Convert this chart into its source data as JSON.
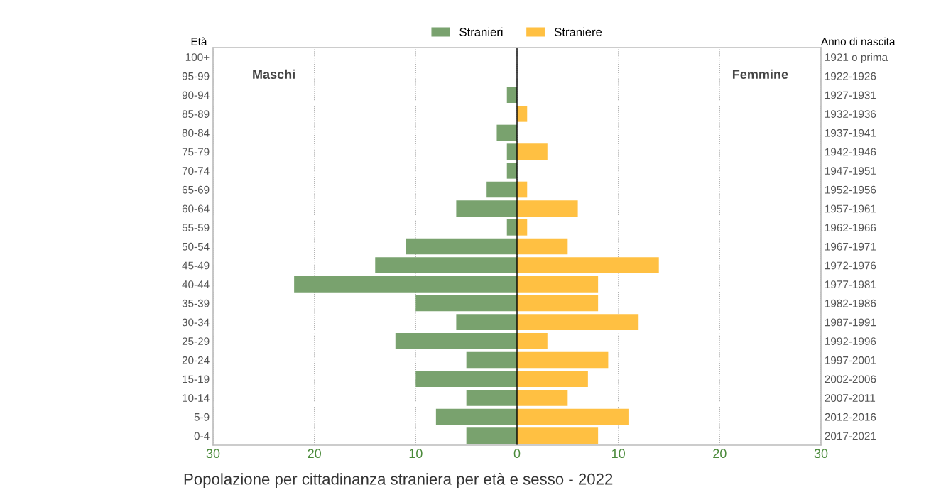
{
  "chart_data": {
    "type": "bar",
    "orientation": "horizontal",
    "title": "Popolazione per cittadinanza straniera per età e sesso - 2022",
    "ylabel": "Età",
    "y2label": "Anno di nascita",
    "categories": [
      "100+",
      "95-99",
      "90-94",
      "85-89",
      "80-84",
      "75-79",
      "70-74",
      "65-69",
      "60-64",
      "55-59",
      "50-54",
      "45-49",
      "40-44",
      "35-39",
      "30-34",
      "25-29",
      "20-24",
      "15-19",
      "10-14",
      "5-9",
      "0-4"
    ],
    "y2_categories": [
      "1921 o prima",
      "1922-1926",
      "1927-1931",
      "1932-1936",
      "1937-1941",
      "1942-1946",
      "1947-1951",
      "1952-1956",
      "1957-1961",
      "1962-1966",
      "1967-1971",
      "1972-1976",
      "1977-1981",
      "1982-1986",
      "1987-1991",
      "1992-1996",
      "1997-2001",
      "2002-2006",
      "2007-2011",
      "2012-2016",
      "2017-2021"
    ],
    "series": [
      {
        "name": "Stranieri",
        "color": "#79a26e",
        "values": [
          0,
          0,
          -1,
          0,
          -2,
          -1,
          -1,
          -3,
          -6,
          -1,
          -11,
          -14,
          -22,
          -10,
          -6,
          -12,
          -5,
          -10,
          -5,
          -8,
          -5
        ]
      },
      {
        "name": "Straniere",
        "color": "#ffc042",
        "values": [
          0,
          0,
          0,
          1,
          0,
          3,
          0,
          1,
          6,
          1,
          5,
          14,
          8,
          8,
          12,
          3,
          9,
          7,
          5,
          11,
          8
        ]
      }
    ],
    "xlim": [
      -30,
      30
    ],
    "xticks": [
      {
        "value": -30,
        "label": "30"
      },
      {
        "value": -20,
        "label": "20"
      },
      {
        "value": -10,
        "label": "10"
      },
      0,
      10,
      20,
      30
    ],
    "annotations": [
      "Maschi",
      "Femmine"
    ],
    "stacked": true,
    "grid": "x",
    "legend": "top",
    "ref_lines": [
      {
        "axis": "x",
        "value": 0,
        "color": "#000000"
      }
    ]
  }
}
